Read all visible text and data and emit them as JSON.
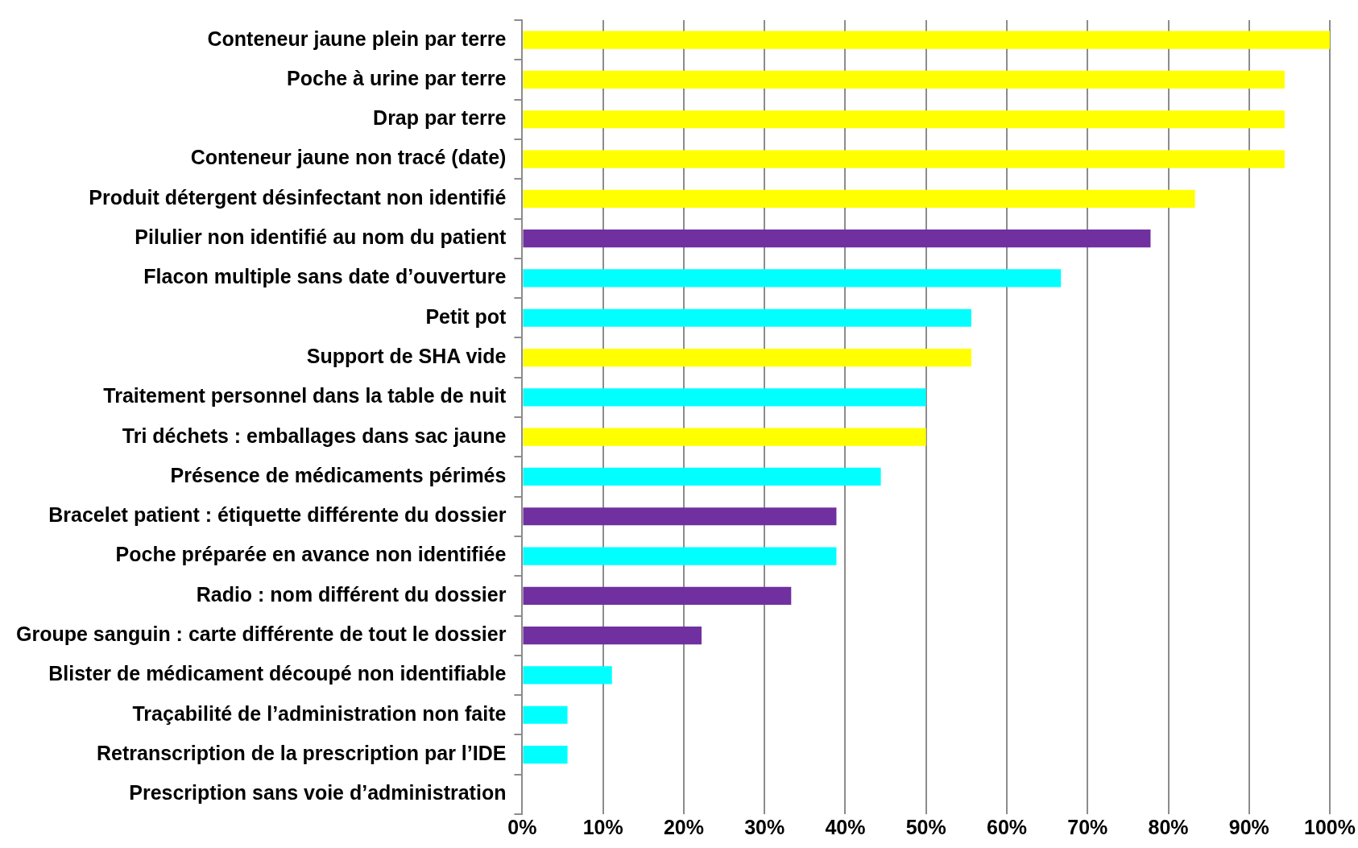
{
  "chart_data": {
    "type": "bar",
    "orientation": "horizontal",
    "categories": [
      "Conteneur jaune plein par terre",
      "Poche à urine par terre",
      "Drap par terre",
      "Conteneur jaune non tracé (date)",
      "Produit détergent désinfectant non identifié",
      "Pilulier non identifié au nom du patient",
      "Flacon multiple sans date d’ouverture",
      "Petit pot",
      "Support de SHA vide",
      "Traitement personnel dans la table de nuit",
      "Tri déchets : emballages dans sac jaune",
      "Présence de médicaments périmés",
      "Bracelet patient : étiquette différente du dossier",
      "Poche préparée en avance non identifiée",
      "Radio : nom différent du dossier",
      "Groupe sanguin : carte différente de tout le dossier",
      "Blister de médicament découpé non identifiable",
      "Traçabilité de l’administration non faite",
      "Retranscription de la prescription par l’IDE",
      "Prescription sans voie d’administration"
    ],
    "values": [
      100,
      94.4,
      94.4,
      94.4,
      83.3,
      77.8,
      66.7,
      55.6,
      55.6,
      50,
      50,
      44.4,
      38.9,
      38.9,
      33.3,
      22.2,
      11.1,
      5.6,
      5.6,
      0
    ],
    "colors": [
      "#ffff00",
      "#ffff00",
      "#ffff00",
      "#ffff00",
      "#ffff00",
      "#7030a0",
      "#00ffff",
      "#00ffff",
      "#ffff00",
      "#00ffff",
      "#ffff00",
      "#00ffff",
      "#7030a0",
      "#00ffff",
      "#7030a0",
      "#7030a0",
      "#00ffff",
      "#00ffff",
      "#00ffff",
      "#00ffff"
    ],
    "xlim": [
      0,
      100
    ],
    "xticks": [
      {
        "value": 0,
        "label": "0%"
      },
      {
        "value": 10,
        "label": "10%"
      },
      {
        "value": 20,
        "label": "20%"
      },
      {
        "value": 30,
        "label": "30%"
      },
      {
        "value": 40,
        "label": "40%"
      },
      {
        "value": 50,
        "label": "50%"
      },
      {
        "value": 60,
        "label": "60%"
      },
      {
        "value": 70,
        "label": "70%"
      },
      {
        "value": 80,
        "label": "80%"
      },
      {
        "value": 90,
        "label": "90%"
      },
      {
        "value": 100,
        "label": "100%"
      }
    ],
    "grid": "x",
    "legend": false
  }
}
